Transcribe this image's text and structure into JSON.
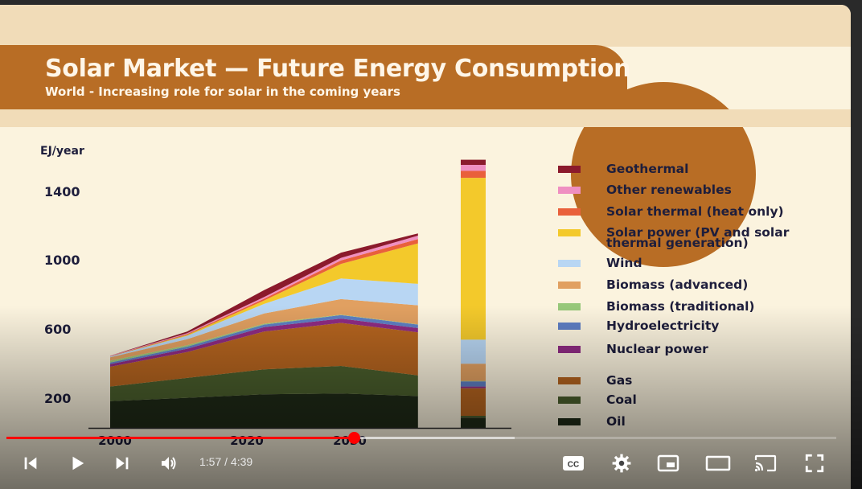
{
  "slide": {
    "title": "Solar Market — Future Energy Consumption",
    "subtitle": "World - Increasing role for solar in the coming years"
  },
  "chart_data": {
    "type": "area",
    "ylabel": "EJ/year",
    "y_ticks": [
      "1400",
      "1000",
      "600",
      "200"
    ],
    "x_ticks": [
      "2000",
      "2020",
      "2030"
    ],
    "ylim": [
      0,
      1700
    ],
    "x": [
      2000,
      2010,
      2020,
      2030,
      2040
    ],
    "series": [
      {
        "name": "Oil",
        "color": "#1f2a17",
        "values": [
          155,
          175,
          195,
          200,
          185
        ],
        "extra_bar": 60
      },
      {
        "name": "Coal",
        "color": "#4a5e2c",
        "values": [
          85,
          115,
          145,
          160,
          120
        ],
        "extra_bar": 10
      },
      {
        "name": "Gas",
        "color": "#b5641f",
        "values": [
          115,
          150,
          220,
          250,
          250
        ],
        "extra_bar": 160
      },
      {
        "name": "Nuclear power",
        "color": "#8e2b82",
        "values": [
          15,
          20,
          25,
          25,
          25
        ],
        "extra_bar": 10
      },
      {
        "name": "Hydroelectricity",
        "color": "#5e7ec3",
        "values": [
          10,
          12,
          15,
          20,
          20
        ],
        "extra_bar": 30
      },
      {
        "name": "Biomass (traditional)",
        "color": "#97c87a",
        "values": [
          10,
          8,
          5,
          3,
          2
        ],
        "extra_bar": 3
      },
      {
        "name": "Biomass (advanced)",
        "color": "#e1a061",
        "values": [
          20,
          35,
          60,
          90,
          110
        ],
        "extra_bar": 100
      },
      {
        "name": "Wind",
        "color": "#b8d6f3",
        "values": [
          5,
          20,
          55,
          120,
          125
        ],
        "extra_bar": 140
      },
      {
        "name": "Solar power (PV and solar thermal generation)",
        "color": "#f3c92b",
        "values": [
          0,
          5,
          20,
          85,
          235
        ],
        "extra_bar": 940
      },
      {
        "name": "Solar thermal (heat only)",
        "color": "#e9603b",
        "values": [
          2,
          5,
          10,
          20,
          25
        ],
        "extra_bar": 40
      },
      {
        "name": "Other renewables",
        "color": "#ef8fc1",
        "values": [
          2,
          5,
          10,
          15,
          20
        ],
        "extra_bar": 35
      },
      {
        "name": "Geothermal",
        "color": "#8b1a2c",
        "values": [
          0,
          10,
          40,
          30,
          13
        ],
        "extra_bar": 30
      }
    ]
  },
  "legend_order": [
    "Geothermal",
    "Other renewables",
    "Solar thermal (heat only)",
    "Solar power (PV and solar thermal generation)",
    "Wind",
    "Biomass (advanced)",
    "Biomass (traditional)",
    "Hydroelectricity",
    "Nuclear power",
    "Gas",
    "Coal",
    "Oil"
  ],
  "legend_labels": [
    "Geothermal",
    "Other renewables",
    "Solar thermal (heat only)",
    "Solar power (PV and solar|thermal generation)",
    "Wind",
    "Biomass (advanced)",
    "Biomass (traditional)",
    "Hydroelectricity",
    "Nuclear power",
    "Gas",
    "Coal",
    "Oil"
  ],
  "player": {
    "current_time": "1:57",
    "separator": " / ",
    "duration": "4:39",
    "progress_fraction": 0.419,
    "buffered_fraction": 0.612,
    "icons": {
      "prev": "skip-previous-icon",
      "play": "play-icon",
      "next": "skip-next-icon",
      "volume": "volume-icon",
      "cc": "subtitles-icon",
      "settings": "gear-icon",
      "miniplayer": "miniplayer-icon",
      "theater": "theater-mode-icon",
      "cast": "cast-icon",
      "fullscreen": "fullscreen-icon"
    },
    "accent_color": "#ff0000"
  }
}
